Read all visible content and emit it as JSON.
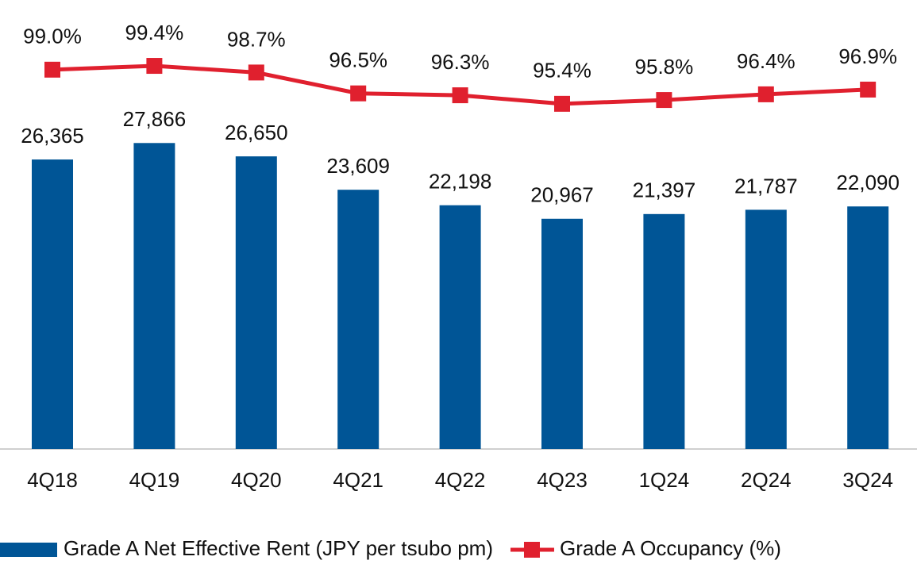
{
  "chart_data": {
    "type": "bar-line",
    "categories": [
      "4Q18",
      "4Q19",
      "4Q20",
      "4Q21",
      "4Q22",
      "4Q23",
      "1Q24",
      "2Q24",
      "3Q24"
    ],
    "ylim": [
      0,
      38000
    ],
    "y2lim": [
      59,
      103
    ],
    "legend": "bottom",
    "series": [
      {
        "name": "Grade A Net Effective Rent (JPY per tsubo pm)",
        "type": "bar",
        "color": "#005596",
        "values": [
          26365,
          27866,
          26650,
          23609,
          22198,
          20967,
          21397,
          21787,
          22090
        ],
        "value_labels": [
          "26,365",
          "27,866",
          "26,650",
          "23,609",
          "22,198",
          "20,967",
          "21,397",
          "21,787",
          "22,090"
        ]
      },
      {
        "name": "Grade A Occupancy (%)",
        "type": "line",
        "axis": "y2",
        "color": "#e0202e",
        "values": [
          99.0,
          99.4,
          98.7,
          96.5,
          96.3,
          95.4,
          95.8,
          96.4,
          96.9
        ],
        "value_labels": [
          "99.0%",
          "99.4%",
          "98.7%",
          "96.5%",
          "96.3%",
          "95.4%",
          "95.8%",
          "96.4%",
          "96.9%"
        ]
      }
    ]
  }
}
